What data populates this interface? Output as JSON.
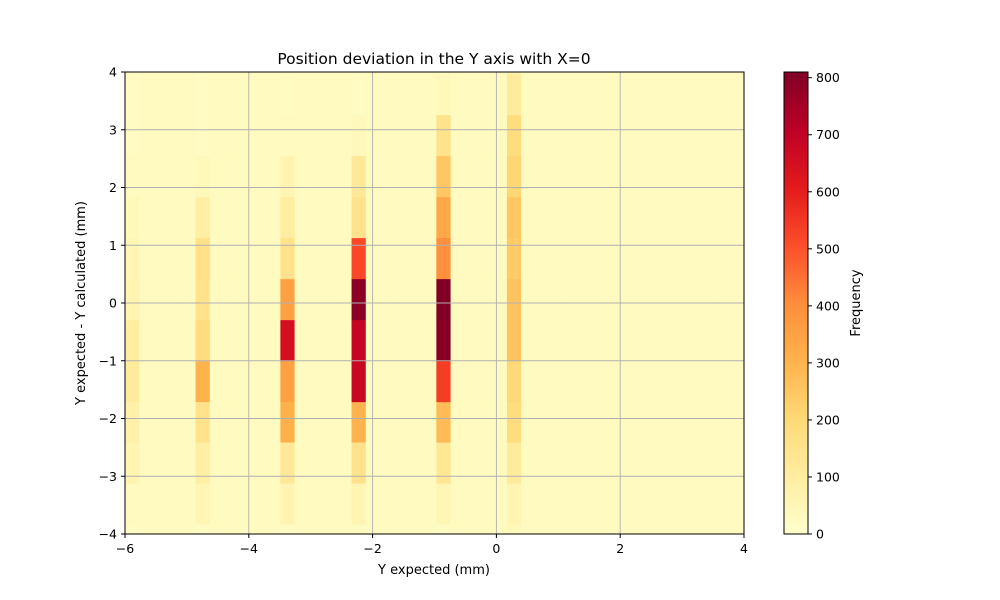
{
  "chart_data": {
    "type": "heatmap",
    "title": "Position deviation in the Y axis with X=0",
    "xlabel": "Y expected (mm)",
    "ylabel": "Y expected - Y calculated (mm)",
    "colorbar_label": "Frequency",
    "xlim": [
      -6,
      4
    ],
    "ylim": [
      -4,
      4
    ],
    "clim": [
      0,
      810
    ],
    "grid": true,
    "colormap": "YlOrRd",
    "colormap_stops": [
      "#ffffcc",
      "#ffeda0",
      "#fed976",
      "#feb24c",
      "#fd8d3c",
      "#fc4e2a",
      "#e31a1c",
      "#bd0026",
      "#800026"
    ],
    "x_ticks": [
      -6,
      -4,
      -2,
      0,
      2,
      4
    ],
    "x_tick_labels": [
      "−6",
      "−4",
      "−2",
      "0",
      "2",
      "4"
    ],
    "y_ticks": [
      -4,
      -3,
      -2,
      -1,
      0,
      1,
      2,
      3,
      4
    ],
    "y_tick_labels": [
      "−4",
      "−3",
      "−2",
      "−1",
      "0",
      "1",
      "2",
      "3",
      "4"
    ],
    "colorbar_ticks": [
      0,
      100,
      200,
      300,
      400,
      500,
      600,
      700,
      800
    ],
    "colorbar_tick_labels": [
      "0",
      "100",
      "200",
      "300",
      "400",
      "500",
      "600",
      "700",
      "800"
    ],
    "x_bin_edges": [
      -6,
      -5.77,
      -5.54,
      -5.31,
      -5.08,
      -4.86,
      -4.63,
      -4.4,
      -4.17,
      -3.94,
      -3.71,
      -3.49,
      -3.26,
      -3.03,
      -2.8,
      -2.57,
      -2.34,
      -2.11,
      -1.89,
      -1.66,
      -1.43,
      -1.2,
      -0.97,
      -0.74,
      -0.51,
      -0.29,
      -0.06,
      0.17,
      0.4,
      0.63,
      0.86,
      1.09,
      1.31,
      1.54,
      1.77,
      2.0,
      2.23,
      2.46,
      2.69,
      2.91,
      3.14,
      3.37,
      3.6,
      3.83,
      4
    ],
    "y_bin_edges": [
      -4,
      -3.83,
      -3.12,
      -2.41,
      -1.71,
      -1.0,
      -0.29,
      0.42,
      1.13,
      1.84,
      2.55,
      3.26,
      3.97,
      4
    ],
    "column_counts": [
      {
        "x_bin": 0,
        "values": [
          20,
          30,
          60,
          80,
          110,
          100,
          60,
          50,
          40,
          30,
          20,
          20,
          20
        ]
      },
      {
        "x_bin": 5,
        "values": [
          20,
          50,
          90,
          150,
          300,
          180,
          150,
          160,
          90,
          40,
          20,
          20,
          20
        ]
      },
      {
        "x_bin": 11,
        "values": [
          20,
          60,
          120,
          310,
          350,
          650,
          350,
          150,
          100,
          60,
          30,
          20,
          20
        ]
      },
      {
        "x_bin": 16,
        "values": [
          30,
          60,
          150,
          300,
          680,
          690,
          790,
          520,
          150,
          120,
          40,
          20,
          20
        ]
      },
      {
        "x_bin": 22,
        "values": [
          20,
          50,
          130,
          280,
          540,
          800,
          810,
          400,
          330,
          250,
          150,
          40,
          20
        ]
      },
      {
        "x_bin": 27,
        "values": [
          40,
          60,
          110,
          180,
          200,
          260,
          260,
          240,
          250,
          210,
          180,
          110,
          60
        ]
      }
    ],
    "background_count": 30
  }
}
